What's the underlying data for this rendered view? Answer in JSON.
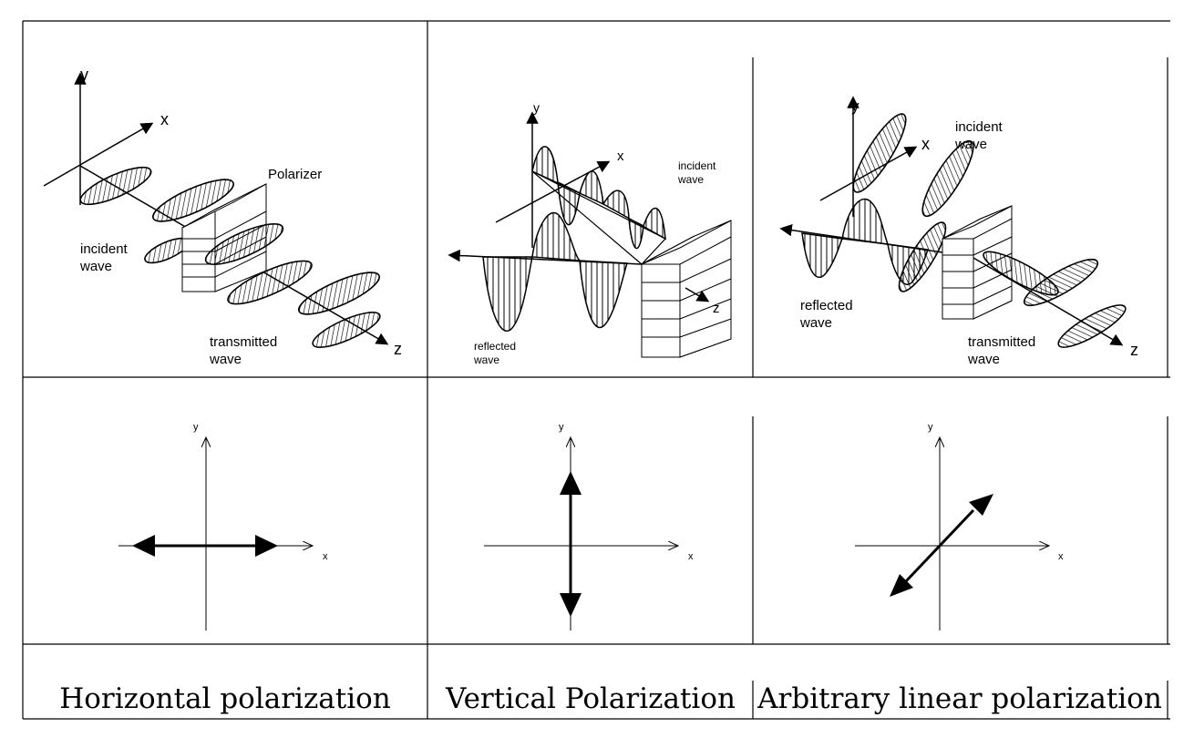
{
  "panels": {
    "horizontal": {
      "axis_y": "y",
      "axis_x": "x",
      "axis_z": "z",
      "polarizer": "Polarizer",
      "incident": [
        "incident",
        "wave"
      ],
      "transmitted": [
        "transmitted",
        "wave"
      ]
    },
    "vertical": {
      "axis_y": "y",
      "axis_x": "x",
      "axis_z": "z",
      "incident": [
        "incident",
        "wave"
      ],
      "reflected": [
        "reflected",
        "wave"
      ]
    },
    "arbitrary": {
      "axis_y": "y",
      "axis_x": "x",
      "axis_z": "z",
      "incident": [
        "incident",
        "wave"
      ],
      "reflected": [
        "reflected",
        "wave"
      ],
      "transmitted": [
        "transmitted",
        "wave"
      ]
    }
  },
  "vectors": {
    "horizontal": {
      "axis_x": "x",
      "axis_y": "y"
    },
    "vertical": {
      "axis_x": "x",
      "axis_y": "y"
    },
    "arbitrary": {
      "axis_x": "x",
      "axis_y": "y"
    }
  },
  "captions": {
    "horizontal": "Horizontal polarization",
    "vertical": "Vertical Polarization",
    "arbitrary": "Arbitrary linear polarization"
  }
}
